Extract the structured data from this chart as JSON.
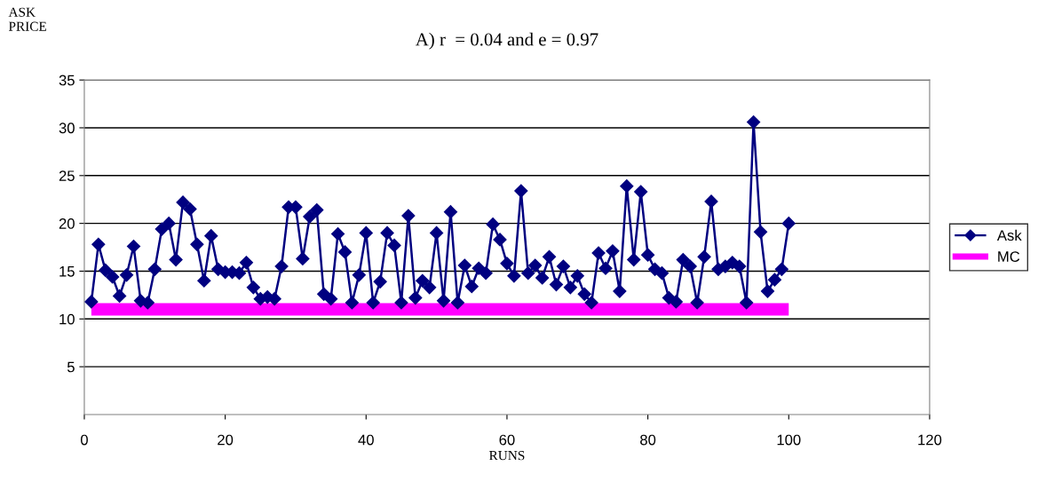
{
  "chart_data": {
    "type": "line",
    "title": "A) r  = 0.04 and e = 0.97",
    "xlabel": "RUNS",
    "ylabel": "ASK\nPRICE",
    "x": [
      1,
      2,
      3,
      4,
      5,
      6,
      7,
      8,
      9,
      10,
      11,
      12,
      13,
      14,
      15,
      16,
      17,
      18,
      19,
      20,
      21,
      22,
      23,
      24,
      25,
      26,
      27,
      28,
      29,
      30,
      31,
      32,
      33,
      34,
      35,
      36,
      37,
      38,
      39,
      40,
      41,
      42,
      43,
      44,
      45,
      46,
      47,
      48,
      49,
      50,
      51,
      52,
      53,
      54,
      55,
      56,
      57,
      58,
      59,
      60,
      61,
      62,
      63,
      64,
      65,
      66,
      67,
      68,
      69,
      70,
      71,
      72,
      73,
      74,
      75,
      76,
      77,
      78,
      79,
      80,
      81,
      82,
      83,
      84,
      85,
      86,
      87,
      88,
      89,
      90,
      91,
      92,
      93,
      94,
      95,
      96,
      97,
      98,
      99,
      100
    ],
    "series": [
      {
        "name": "Ask",
        "color": "#000080",
        "marker": "diamond",
        "values": [
          11.8,
          17.8,
          15.1,
          14.4,
          12.4,
          14.6,
          17.6,
          11.9,
          11.7,
          15.2,
          19.4,
          20.0,
          16.2,
          22.2,
          21.5,
          17.8,
          14.0,
          18.7,
          15.2,
          14.9,
          14.9,
          14.8,
          15.9,
          13.3,
          12.1,
          12.3,
          12.1,
          15.5,
          21.7,
          21.7,
          16.3,
          20.7,
          21.4,
          12.6,
          12.1,
          18.9,
          17.0,
          11.7,
          14.6,
          19.0,
          11.7,
          13.9,
          19.0,
          17.7,
          11.7,
          20.8,
          12.2,
          14.0,
          13.3,
          19.0,
          11.9,
          21.2,
          11.7,
          15.6,
          13.4,
          15.3,
          14.8,
          19.9,
          18.3,
          15.8,
          14.5,
          23.4,
          14.8,
          15.6,
          14.3,
          16.5,
          13.6,
          15.5,
          13.3,
          14.5,
          12.6,
          11.7,
          16.9,
          15.3,
          17.1,
          12.9,
          23.9,
          16.2,
          23.3,
          16.7,
          15.2,
          14.8,
          12.2,
          11.8,
          16.2,
          15.5,
          11.7,
          16.5,
          22.3,
          15.2,
          15.5,
          15.9,
          15.5,
          11.7,
          30.6,
          19.1,
          12.9,
          14.1,
          15.2,
          20.0
        ]
      },
      {
        "name": "MC",
        "color": "#ff00ff",
        "values": [
          11,
          11,
          11,
          11,
          11,
          11,
          11,
          11,
          11,
          11,
          11,
          11,
          11,
          11,
          11,
          11,
          11,
          11,
          11,
          11,
          11,
          11,
          11,
          11,
          11,
          11,
          11,
          11,
          11,
          11,
          11,
          11,
          11,
          11,
          11,
          11,
          11,
          11,
          11,
          11,
          11,
          11,
          11,
          11,
          11,
          11,
          11,
          11,
          11,
          11,
          11,
          11,
          11,
          11,
          11,
          11,
          11,
          11,
          11,
          11,
          11,
          11,
          11,
          11,
          11,
          11,
          11,
          11,
          11,
          11,
          11,
          11,
          11,
          11,
          11,
          11,
          11,
          11,
          11,
          11,
          11,
          11,
          11,
          11,
          11,
          11,
          11,
          11,
          11,
          11,
          11,
          11,
          11,
          11,
          11,
          11,
          11,
          11,
          11,
          11
        ]
      }
    ],
    "xlim": [
      0,
      120
    ],
    "xticks": [
      0,
      20,
      40,
      60,
      80,
      100,
      120
    ],
    "ylim": [
      0,
      35
    ],
    "yticks": [
      5,
      10,
      15,
      20,
      25,
      30,
      35
    ],
    "grid": "y",
    "legend": "right",
    "line_style": "solid"
  }
}
